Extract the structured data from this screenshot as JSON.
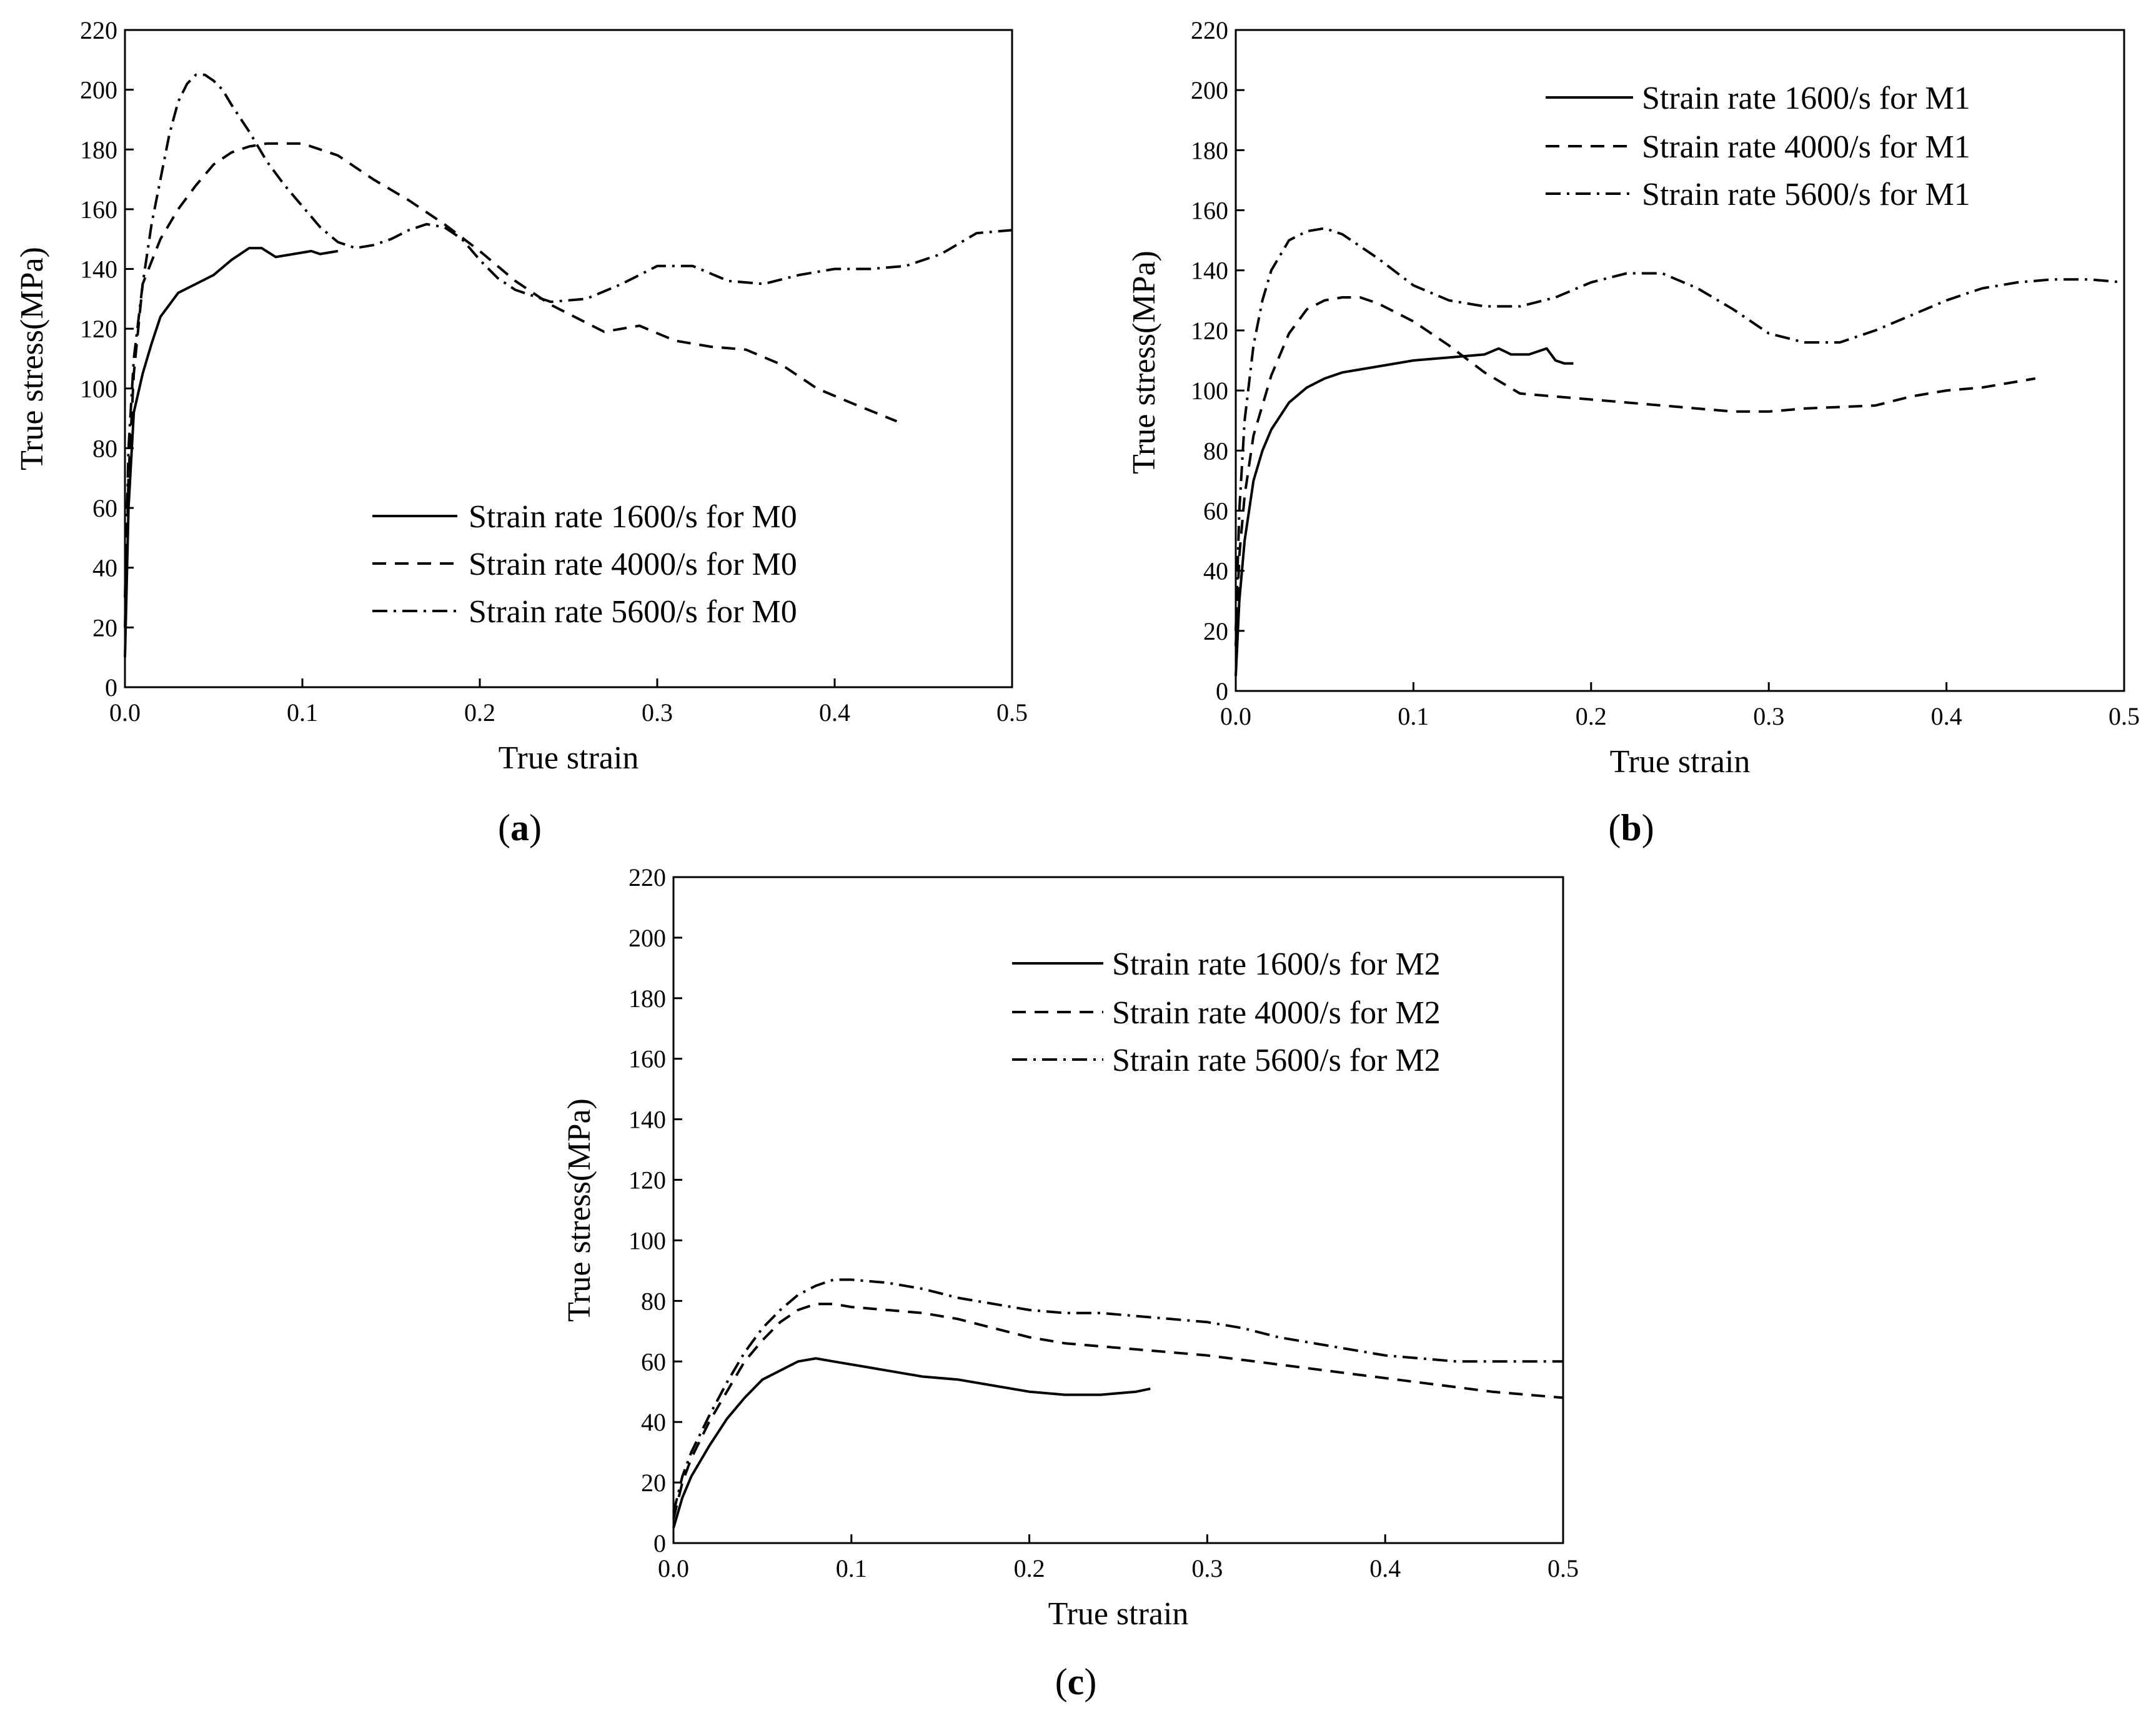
{
  "figure": {
    "colors": {
      "line": "#000000",
      "background": "#ffffff"
    },
    "dash_styles": {
      "solid": "",
      "dashed": "dashed",
      "dashdot": "dash-dot"
    }
  },
  "chart_data": [
    {
      "type": "line",
      "panel_label": "a",
      "xlabel": "True strain",
      "ylabel": "True stress(MPa)",
      "xlim": [
        0.0,
        0.5
      ],
      "ylim": [
        0,
        220
      ],
      "xticks": [
        "0.0",
        "0.1",
        "0.2",
        "0.3",
        "0.4",
        "0.5"
      ],
      "yticks": [
        "0",
        "20",
        "40",
        "60",
        "80",
        "100",
        "120",
        "140",
        "160",
        "180",
        "200",
        "220"
      ],
      "legend_position": "bottom-right",
      "series": [
        {
          "name": "Strain rate 1600/s for M0",
          "style": "solid",
          "x": [
            0,
            0.002,
            0.005,
            0.01,
            0.015,
            0.02,
            0.03,
            0.04,
            0.05,
            0.06,
            0.07,
            0.077,
            0.085,
            0.095,
            0.105,
            0.11,
            0.12
          ],
          "y": [
            10,
            60,
            92,
            105,
            115,
            124,
            132,
            135,
            138,
            143,
            147,
            147,
            144,
            145,
            146,
            145,
            146
          ]
        },
        {
          "name": "Strain rate 4000/s for M0",
          "style": "dashed",
          "x": [
            0,
            0.002,
            0.005,
            0.01,
            0.02,
            0.03,
            0.04,
            0.05,
            0.06,
            0.07,
            0.08,
            0.09,
            0.1,
            0.12,
            0.14,
            0.16,
            0.18,
            0.2,
            0.22,
            0.24,
            0.26,
            0.27,
            0.29,
            0.31,
            0.33,
            0.35,
            0.37,
            0.39,
            0.41,
            0.435
          ],
          "y": [
            20,
            70,
            105,
            135,
            150,
            160,
            168,
            175,
            179,
            181,
            182,
            182,
            182,
            178,
            170,
            163,
            155,
            146,
            136,
            128,
            122,
            119,
            121,
            116,
            114,
            113,
            108,
            100,
            95,
            89
          ]
        },
        {
          "name": "Strain rate 5600/s for M0",
          "style": "dashdot",
          "x": [
            0,
            0.002,
            0.005,
            0.01,
            0.015,
            0.02,
            0.025,
            0.03,
            0.035,
            0.04,
            0.045,
            0.05,
            0.055,
            0.06,
            0.07,
            0.08,
            0.09,
            0.1,
            0.11,
            0.12,
            0.13,
            0.14,
            0.15,
            0.16,
            0.17,
            0.18,
            0.19,
            0.2,
            0.21,
            0.22,
            0.24,
            0.26,
            0.28,
            0.3,
            0.32,
            0.34,
            0.36,
            0.38,
            0.4,
            0.42,
            0.44,
            0.46,
            0.48,
            0.5
          ],
          "y": [
            30,
            80,
            110,
            135,
            155,
            170,
            185,
            196,
            202,
            205,
            205,
            203,
            200,
            195,
            186,
            176,
            168,
            161,
            154,
            149,
            147,
            148,
            150,
            153,
            155,
            154,
            150,
            143,
            137,
            133,
            129,
            130,
            135,
            141,
            141,
            136,
            135,
            138,
            140,
            140,
            141,
            145,
            152,
            153
          ]
        }
      ]
    },
    {
      "type": "line",
      "panel_label": "b",
      "xlabel": "True strain",
      "ylabel": "True stress(MPa)",
      "xlim": [
        0.0,
        0.5
      ],
      "ylim": [
        0,
        220
      ],
      "xticks": [
        "0.0",
        "0.1",
        "0.2",
        "0.3",
        "0.4",
        "0.5"
      ],
      "yticks": [
        "0",
        "20",
        "40",
        "60",
        "80",
        "100",
        "120",
        "140",
        "160",
        "180",
        "200",
        "220"
      ],
      "legend_position": "top-right",
      "series": [
        {
          "name": "Strain rate 1600/s for M1",
          "style": "solid",
          "x": [
            0,
            0.002,
            0.005,
            0.01,
            0.015,
            0.02,
            0.03,
            0.04,
            0.05,
            0.06,
            0.08,
            0.1,
            0.12,
            0.14,
            0.148,
            0.155,
            0.165,
            0.175,
            0.18,
            0.185,
            0.19
          ],
          "y": [
            5,
            30,
            50,
            70,
            80,
            87,
            96,
            101,
            104,
            106,
            108,
            110,
            111,
            112,
            114,
            112,
            112,
            114,
            110,
            109,
            109
          ]
        },
        {
          "name": "Strain rate 4000/s for M1",
          "style": "dashed",
          "x": [
            0,
            0.002,
            0.005,
            0.01,
            0.02,
            0.03,
            0.04,
            0.05,
            0.06,
            0.07,
            0.08,
            0.1,
            0.12,
            0.14,
            0.16,
            0.18,
            0.2,
            0.24,
            0.28,
            0.3,
            0.32,
            0.36,
            0.38,
            0.4,
            0.42,
            0.45
          ],
          "y": [
            15,
            45,
            65,
            85,
            105,
            119,
            127,
            130,
            131,
            131,
            129,
            123,
            115,
            106,
            99,
            98,
            97,
            95,
            93,
            93,
            94,
            95,
            98,
            100,
            101,
            104
          ]
        },
        {
          "name": "Strain rate 5600/s for M1",
          "style": "dashdot",
          "x": [
            0,
            0.002,
            0.005,
            0.01,
            0.015,
            0.02,
            0.03,
            0.04,
            0.05,
            0.06,
            0.08,
            0.1,
            0.12,
            0.14,
            0.16,
            0.18,
            0.2,
            0.22,
            0.24,
            0.26,
            0.28,
            0.3,
            0.32,
            0.34,
            0.36,
            0.38,
            0.4,
            0.42,
            0.44,
            0.46,
            0.48,
            0.5
          ],
          "y": [
            20,
            60,
            90,
            115,
            130,
            140,
            150,
            153,
            154,
            152,
            144,
            135,
            130,
            128,
            128,
            131,
            136,
            139,
            139,
            134,
            127,
            119,
            116,
            116,
            120,
            125,
            130,
            134,
            136,
            137,
            137,
            136
          ]
        }
      ]
    },
    {
      "type": "line",
      "panel_label": "c",
      "xlabel": "True strain",
      "ylabel": "True stress(MPa)",
      "xlim": [
        0.0,
        0.5
      ],
      "ylim": [
        0,
        220
      ],
      "xticks": [
        "0.0",
        "0.1",
        "0.2",
        "0.3",
        "0.4",
        "0.5"
      ],
      "yticks": [
        "0",
        "20",
        "40",
        "60",
        "80",
        "100",
        "120",
        "140",
        "160",
        "180",
        "200",
        "220"
      ],
      "legend_position": "top-right",
      "series": [
        {
          "name": "Strain rate 1600/s for M2",
          "style": "solid",
          "x": [
            0,
            0.005,
            0.01,
            0.02,
            0.03,
            0.04,
            0.05,
            0.06,
            0.07,
            0.08,
            0.09,
            0.1,
            0.12,
            0.14,
            0.16,
            0.18,
            0.2,
            0.22,
            0.24,
            0.26,
            0.268
          ],
          "y": [
            5,
            15,
            22,
            32,
            41,
            48,
            54,
            57,
            60,
            61,
            60,
            59,
            57,
            55,
            54,
            52,
            50,
            49,
            49,
            50,
            51
          ]
        },
        {
          "name": "Strain rate 4000/s for M2",
          "style": "dashed",
          "x": [
            0,
            0.005,
            0.01,
            0.02,
            0.03,
            0.04,
            0.05,
            0.06,
            0.07,
            0.08,
            0.09,
            0.1,
            0.12,
            0.14,
            0.16,
            0.18,
            0.2,
            0.22,
            0.26,
            0.3,
            0.34,
            0.38,
            0.42,
            0.46,
            0.5
          ],
          "y": [
            8,
            20,
            28,
            40,
            50,
            60,
            67,
            73,
            77,
            79,
            79,
            78,
            77,
            76,
            74,
            71,
            68,
            66,
            64,
            62,
            59,
            56,
            53,
            50,
            48
          ]
        },
        {
          "name": "Strain rate 5600/s for M2",
          "style": "dashdot",
          "x": [
            0,
            0.005,
            0.01,
            0.02,
            0.03,
            0.04,
            0.05,
            0.06,
            0.07,
            0.08,
            0.09,
            0.1,
            0.12,
            0.14,
            0.16,
            0.18,
            0.2,
            0.22,
            0.24,
            0.26,
            0.28,
            0.3,
            0.32,
            0.34,
            0.36,
            0.38,
            0.4,
            0.42,
            0.44,
            0.46,
            0.48,
            0.5
          ],
          "y": [
            10,
            22,
            30,
            42,
            53,
            63,
            71,
            77,
            82,
            85,
            87,
            87,
            86,
            84,
            81,
            79,
            77,
            76,
            76,
            75,
            74,
            73,
            71,
            68,
            66,
            64,
            62,
            61,
            60,
            60,
            60,
            60
          ]
        }
      ]
    }
  ]
}
